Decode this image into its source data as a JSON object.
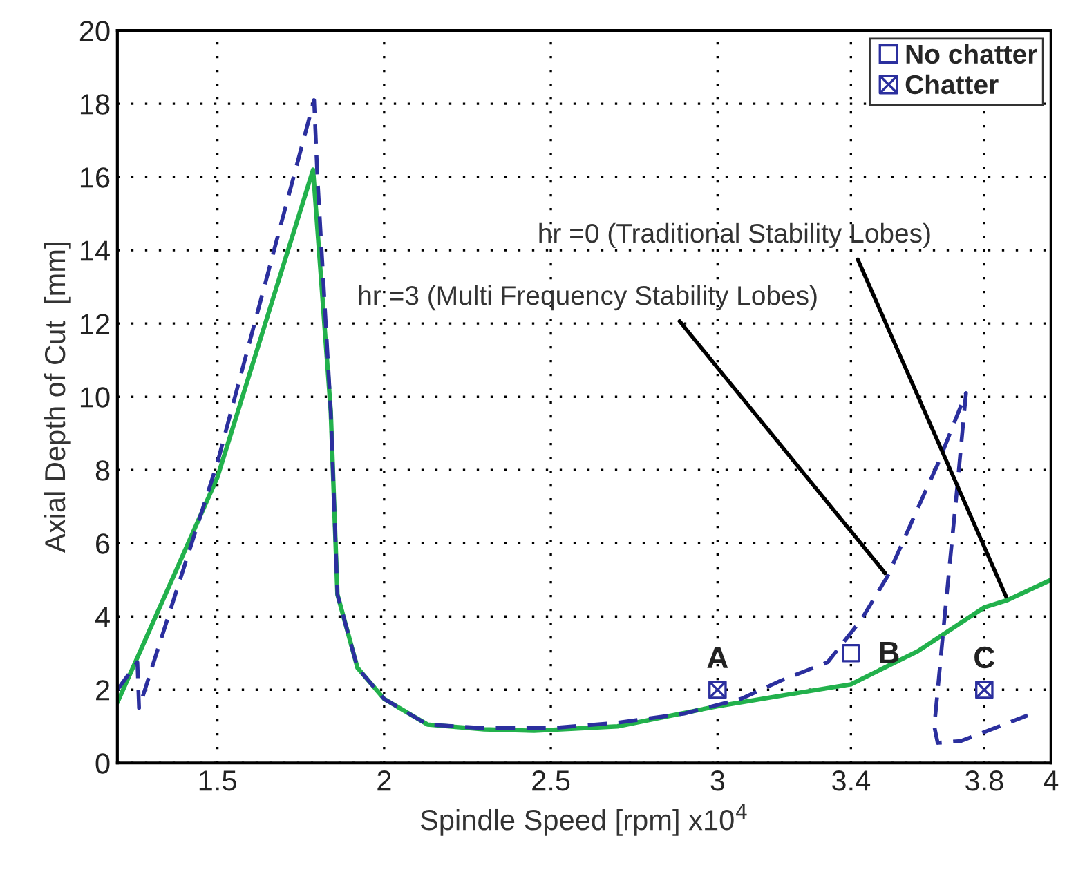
{
  "chart_data": {
    "type": "line",
    "xlabel": "Spindle Speed [rpm] x10$^{4}$",
    "ylabel": "Axial Depth of Cut  [mm]",
    "xlim": [
      1.2,
      4
    ],
    "xticks": [
      1.5,
      2,
      2.5,
      3,
      3.4,
      3.8,
      4
    ],
    "ylim": [
      0,
      20
    ],
    "yticks": [
      0,
      2,
      4,
      6,
      8,
      10,
      12,
      14,
      16,
      18,
      20
    ],
    "grid": true,
    "legend": "top right",
    "series": [
      {
        "color": "#22b14c",
        "line_style": "solid",
        "x": [
          1.2,
          1.5,
          1.787,
          1.84,
          1.86,
          1.92,
          2.0,
          2.13,
          2.3,
          2.45,
          2.7,
          3.0,
          3.2,
          3.4,
          3.6,
          3.8,
          3.87,
          4.0
        ],
        "values": [
          1.65,
          7.8,
          16.2,
          9.6,
          4.6,
          2.6,
          1.75,
          1.05,
          0.92,
          0.88,
          1.0,
          1.55,
          1.85,
          2.15,
          3.05,
          4.25,
          4.45,
          5.0
        ]
      },
      {
        "color": "#2b2f9e",
        "line_style": "dashed",
        "x": [
          1.2,
          1.26,
          1.265,
          1.5,
          1.79,
          1.8,
          1.84,
          1.86,
          1.92,
          2.0,
          2.13,
          2.3,
          2.5,
          2.7,
          2.9,
          3.07,
          3.19,
          3.33,
          3.43,
          3.51,
          3.61,
          3.66,
          3.745,
          3.72,
          3.68,
          3.65,
          3.66,
          3.73,
          3.93
        ],
        "values": [
          2.0,
          2.75,
          1.5,
          8.2,
          18.1,
          16.0,
          9.6,
          4.6,
          2.6,
          1.75,
          1.05,
          0.95,
          0.95,
          1.1,
          1.35,
          1.75,
          2.25,
          2.75,
          3.9,
          5.1,
          7.15,
          8.15,
          10.1,
          7.65,
          3.9,
          1.0,
          0.55,
          0.6,
          1.3
        ]
      },
      {
        "type": "scatter",
        "name": "No chatter",
        "color": "#2b2f9e",
        "marker": "square",
        "x": [
          3.4
        ],
        "values": [
          3.0
        ]
      },
      {
        "type": "scatter",
        "name": "Chatter",
        "color": "#2b2f9e",
        "marker": "cross",
        "x": [
          3.0,
          3.8
        ],
        "values": [
          2.0,
          2.0
        ]
      }
    ],
    "annotations": [
      {
        "text": "hr =0 (Traditional Stability Lobes)",
        "x": 3.87,
        "y": 4.45
      },
      {
        "text": "hr =3 (Multi Frequency Stability Lobes)",
        "x": 3.51,
        "y": 5.1
      },
      {
        "text": "A",
        "x": 3.0,
        "y": 2.0
      },
      {
        "text": "B",
        "x": 3.4,
        "y": 3.0
      },
      {
        "text": "C",
        "x": 3.8,
        "y": 2.0
      }
    ]
  }
}
